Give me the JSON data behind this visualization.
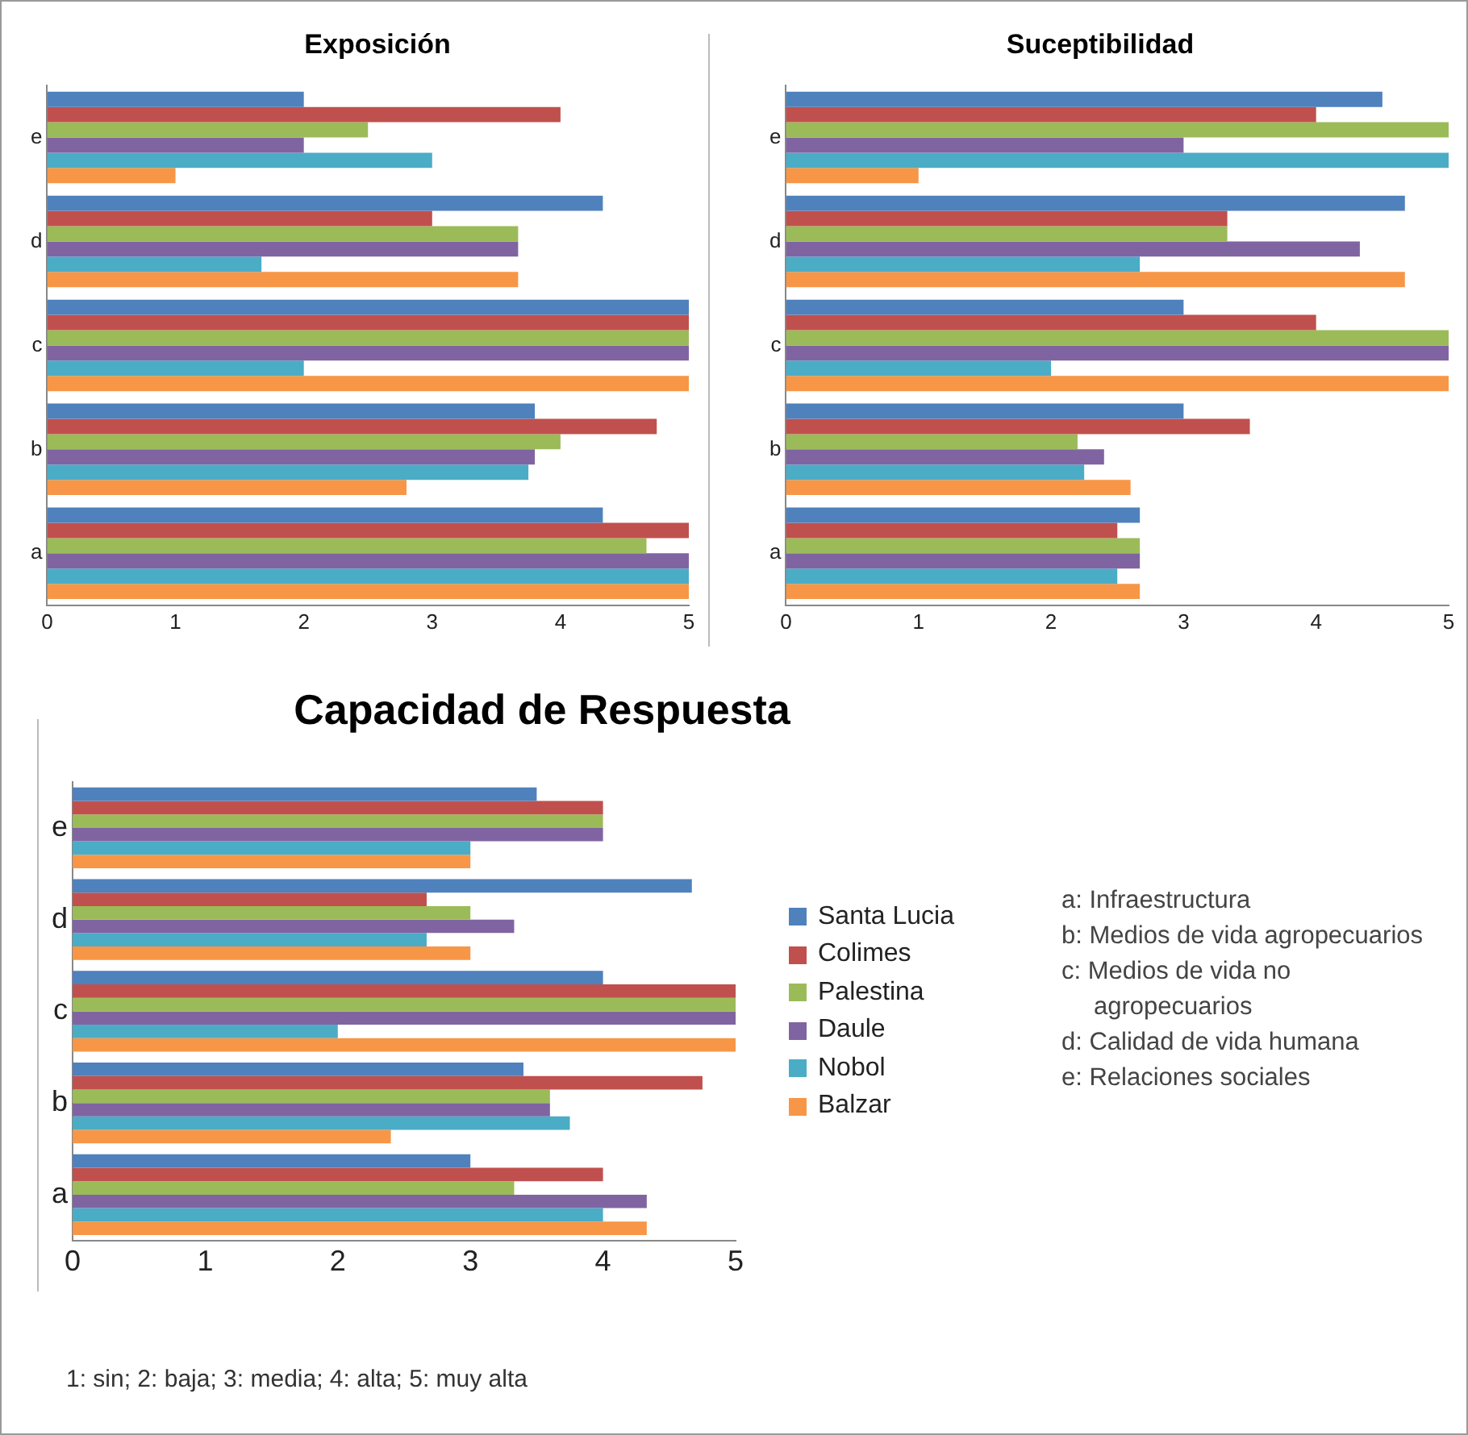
{
  "chart_data": [
    {
      "type": "bar",
      "orientation": "horizontal",
      "title": "Exposición",
      "categories": [
        "e",
        "d",
        "c",
        "b",
        "a"
      ],
      "xlim": [
        0,
        5
      ],
      "xticks": [
        0,
        1,
        2,
        3,
        4,
        5
      ],
      "grid": false,
      "legend": false,
      "series": [
        {
          "color": "#4f81bd",
          "values": [
            2,
            4.33,
            5,
            3.8,
            4.33
          ]
        },
        {
          "color": "#c0504d",
          "values": [
            4,
            3,
            5,
            4.75,
            5
          ]
        },
        {
          "color": "#9bbb59",
          "values": [
            2.5,
            3.67,
            5,
            4,
            4.67
          ]
        },
        {
          "color": "#8064a2",
          "values": [
            2,
            3.67,
            5,
            3.8,
            5
          ]
        },
        {
          "color": "#4bacc6",
          "values": [
            3,
            1.67,
            2,
            3.75,
            5
          ]
        },
        {
          "color": "#f79646",
          "values": [
            1,
            3.67,
            5,
            2.8,
            5
          ]
        }
      ]
    },
    {
      "type": "bar",
      "orientation": "horizontal",
      "title": "Suceptibilidad",
      "categories": [
        "e",
        "d",
        "c",
        "b",
        "a"
      ],
      "xlim": [
        0,
        5
      ],
      "xticks": [
        0,
        1,
        2,
        3,
        4,
        5
      ],
      "grid": false,
      "legend": false,
      "series": [
        {
          "color": "#4f81bd",
          "values": [
            4.5,
            4.67,
            3,
            3,
            2.67
          ]
        },
        {
          "color": "#c0504d",
          "values": [
            4,
            3.33,
            4,
            3.5,
            2.5
          ]
        },
        {
          "color": "#9bbb59",
          "values": [
            5,
            3.33,
            5,
            2.2,
            2.67
          ]
        },
        {
          "color": "#8064a2",
          "values": [
            3,
            4.33,
            5,
            2.4,
            2.67
          ]
        },
        {
          "color": "#4bacc6",
          "values": [
            5,
            2.67,
            2,
            2.25,
            2.5
          ]
        },
        {
          "color": "#f79646",
          "values": [
            1,
            4.67,
            5,
            2.6,
            2.67
          ]
        }
      ]
    },
    {
      "type": "bar",
      "orientation": "horizontal",
      "title": "Capacidad de Respuesta",
      "categories": [
        "e",
        "d",
        "c",
        "b",
        "a"
      ],
      "xlim": [
        0,
        5
      ],
      "xticks": [
        0,
        1,
        2,
        3,
        4,
        5
      ],
      "grid": false,
      "legend": "right",
      "series": [
        {
          "name": "Santa Lucia",
          "color": "#4f81bd",
          "values": [
            3.5,
            4.67,
            4,
            3.4,
            3
          ]
        },
        {
          "name": "Colimes",
          "color": "#c0504d",
          "values": [
            4,
            2.67,
            5,
            4.75,
            4
          ]
        },
        {
          "name": "Palestina",
          "color": "#9bbb59",
          "values": [
            4,
            3,
            5,
            3.6,
            3.33
          ]
        },
        {
          "name": "Daule",
          "color": "#8064a2",
          "values": [
            4,
            3.33,
            5,
            3.6,
            4.33
          ]
        },
        {
          "name": "Nobol",
          "color": "#4bacc6",
          "values": [
            3,
            2.67,
            2,
            3.75,
            4
          ]
        },
        {
          "name": "Balzar",
          "color": "#f79646",
          "values": [
            3,
            3,
            5,
            2.4,
            4.33
          ]
        }
      ],
      "annotations": [
        "a: Infraestructura",
        "b: Medios de vida agropecuarios",
        "c: Medios de vida no agropecuarios",
        "d: Calidad de vida humana",
        "e: Relaciones sociales",
        "1: sin; 2: baja; 3: media; 4: alta; 5: muy alta"
      ]
    }
  ]
}
